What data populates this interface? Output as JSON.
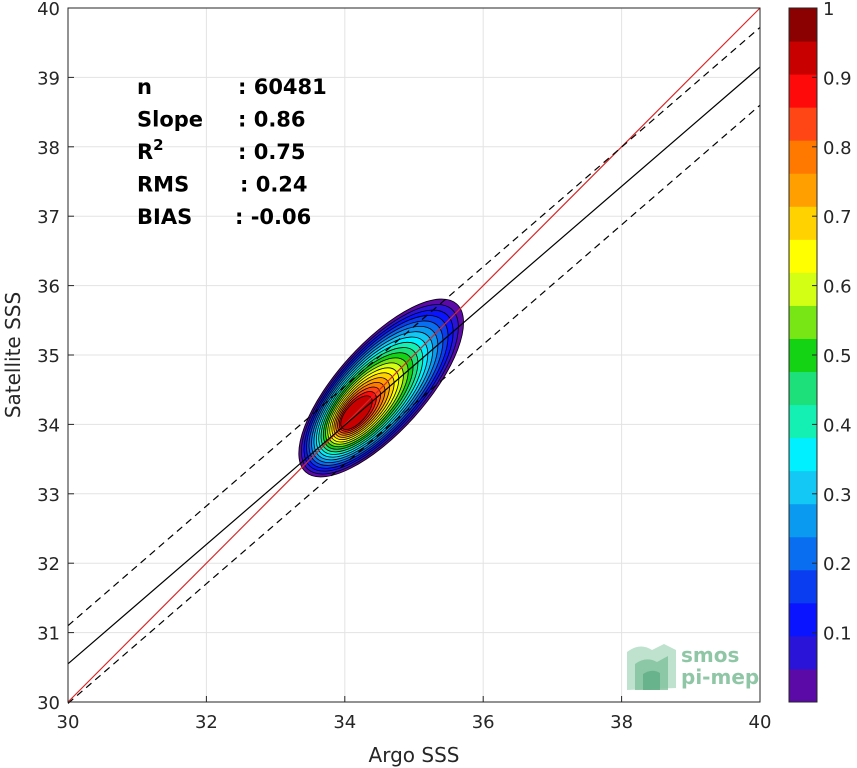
{
  "chart_data": {
    "type": "heatmap",
    "subtype": "density-contour-scatter",
    "xlabel": "Argo SSS",
    "ylabel": "Satellite SSS",
    "xlim": [
      30,
      40
    ],
    "ylim": [
      30,
      40
    ],
    "xticks": [
      30,
      32,
      34,
      36,
      38,
      40
    ],
    "yticks": [
      30,
      31,
      32,
      33,
      34,
      35,
      36,
      37,
      38,
      39,
      40
    ],
    "grid": true,
    "stats": [
      {
        "label": "n",
        "value": ": 60481"
      },
      {
        "label": "Slope",
        "value": ": 0.86"
      },
      {
        "label": "R",
        "sup": "2",
        "value": ": 0.75"
      },
      {
        "label": "RMS",
        "value": ": 0.24"
      },
      {
        "label": "BIAS",
        "value": ": -0.06"
      }
    ],
    "lines": [
      {
        "kind": "one-to-one",
        "color": "#d62728",
        "style": "solid",
        "x": [
          30,
          40
        ],
        "y": [
          30,
          40
        ]
      },
      {
        "kind": "regression",
        "color": "#000000",
        "style": "solid",
        "x": [
          30,
          40
        ],
        "y": [
          30.55,
          39.15
        ]
      },
      {
        "kind": "regression-upper",
        "color": "#000000",
        "style": "dashed",
        "x": [
          30,
          40
        ],
        "y": [
          31.1,
          39.72
        ]
      },
      {
        "kind": "regression-lower",
        "color": "#000000",
        "style": "dashed",
        "x": [
          30,
          40
        ],
        "y": [
          29.98,
          38.6
        ]
      }
    ],
    "density": {
      "center": [
        34.15,
        34.15
      ],
      "levels": [
        0.05,
        0.1,
        0.15,
        0.2,
        0.25,
        0.3,
        0.35,
        0.4,
        0.45,
        0.5,
        0.55,
        0.6,
        0.65,
        0.7,
        0.75,
        0.8,
        0.85,
        0.9,
        0.95
      ],
      "colors": [
        "#5b0aa8",
        "#2a14d8",
        "#0a14ff",
        "#0a3cf0",
        "#0a6ef0",
        "#0a9af0",
        "#14c8f5",
        "#00f0ff",
        "#14f0b4",
        "#1ee07a",
        "#14d214",
        "#78e614",
        "#d2ff14",
        "#ffff00",
        "#ffd200",
        "#ffa000",
        "#ff7800",
        "#ff4614",
        "#ff0a0a",
        "#c80000"
      ]
    },
    "colorbar": {
      "range": [
        0,
        1
      ],
      "ticks": [
        "0.1",
        "0.2",
        "0.3",
        "0.4",
        "0.5",
        "0.6",
        "0.7",
        "0.8",
        "0.9",
        "1"
      ],
      "bands": [
        "#5b0aa8",
        "#2a14d8",
        "#0a14ff",
        "#0a3cf0",
        "#0a6ef0",
        "#0a9af0",
        "#14c8f5",
        "#00f0ff",
        "#14f0b4",
        "#1ee07a",
        "#14d214",
        "#78e614",
        "#d2ff14",
        "#ffff00",
        "#ffd200",
        "#ffa000",
        "#ff7800",
        "#ff4614",
        "#ff0a0a",
        "#c80000",
        "#8b0000"
      ]
    },
    "logo": {
      "line1": "smos",
      "line2": "pi-mep"
    }
  }
}
